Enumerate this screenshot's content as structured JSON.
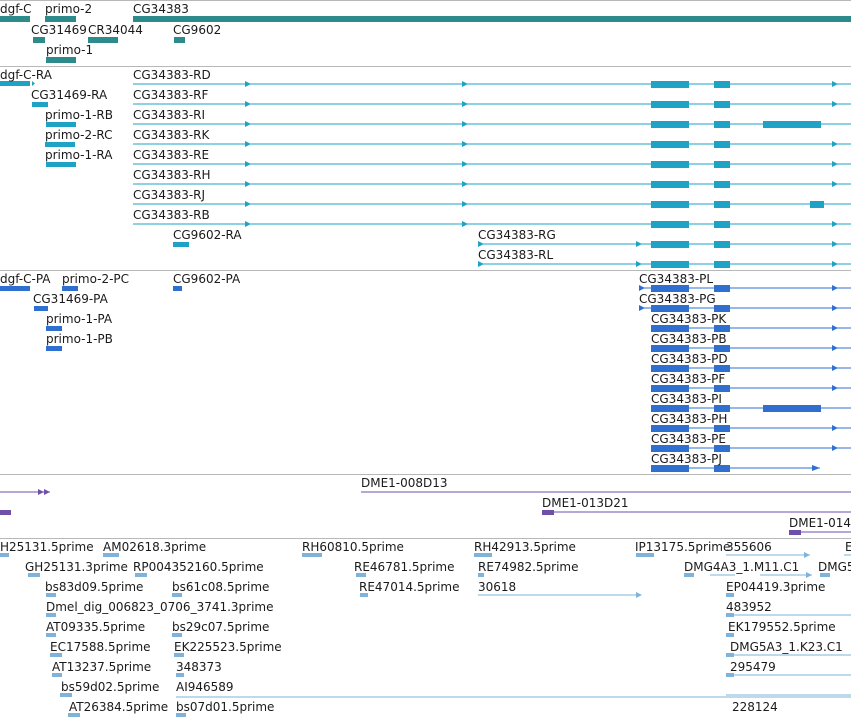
{
  "tracks": {
    "gene_span": {
      "color": "#2e8b8b",
      "labels": [
        "dgf-C",
        "primo-2",
        "CG34383",
        "CG31469",
        "CR34044",
        "CG9602",
        "primo-1"
      ]
    },
    "transcripts": {
      "color": "#1ea3c6",
      "labels": [
        "dgf-C-RA",
        "CG34383-RD",
        "CG31469-RA",
        "CG34383-RF",
        "primo-1-RB",
        "CG34383-RI",
        "primo-2-RC",
        "CG34383-RK",
        "primo-1-RA",
        "CG34383-RE",
        "CG34383-RH",
        "CG34383-RJ",
        "CG34383-RB",
        "CG9602-RA",
        "CG34383-RG",
        "CG34383-RL"
      ]
    },
    "proteins": {
      "color": "#2f6fd0",
      "labels": [
        "dgf-C-PA",
        "primo-2-PC",
        "CG9602-PA",
        "CG34383-PL",
        "CG31469-PA",
        "CG34383-PG",
        "primo-1-PA",
        "CG34383-PK",
        "primo-1-PB",
        "CG34383-PB",
        "CG34383-PD",
        "CG34383-PF",
        "CG34383-PI",
        "CG34383-PH",
        "CG34383-PE",
        "CG34383-PJ"
      ]
    },
    "clones": {
      "color": "#6f4fa8",
      "labels": [
        "DME1-008D13",
        "DME1-013D21",
        "DME1-014"
      ]
    },
    "ests": {
      "color": "#7fb3d9",
      "labels": [
        "H25131.5prime",
        "AM02618.3prime",
        "RH60810.5prime",
        "RH42913.5prime",
        "IP13175.5prime",
        "355606",
        "E",
        "GH25131.3prime",
        "RP004352160.5prime",
        "RE46781.5prime",
        "RE74982.5prime",
        "DMG4A3_1.M11.C1",
        "DMG5",
        "bs83d09.5prime",
        "bs61c08.5prime",
        "RE47014.5prime",
        "30618",
        "EP04419.3prime",
        "Dmel_dig_006823_0706_3741.3prime",
        "483952",
        "AT09335.5prime",
        "bs29c07.5prime",
        "EK179552.5prime",
        "EC17588.5prime",
        "EK225523.5prime",
        "DMG5A3_1.K23.C1",
        "AT13237.5prime",
        "348373",
        "295479",
        "bs59d02.5prime",
        "AI946589",
        "AT26384.5prime",
        "bs07d01.5prime",
        "228124"
      ]
    }
  }
}
